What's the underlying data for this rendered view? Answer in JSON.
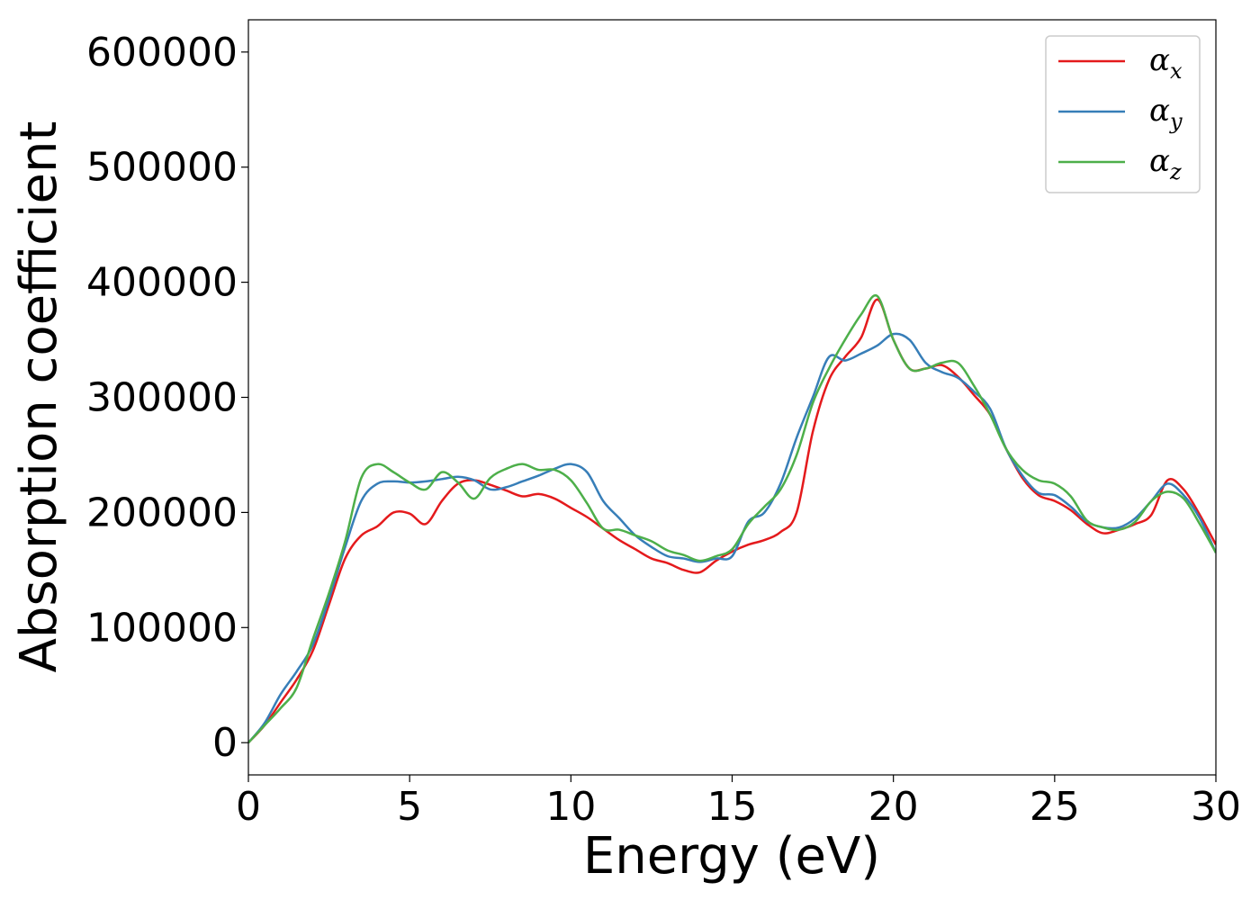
{
  "chart_data": {
    "type": "line",
    "xlabel": "Energy (eV)",
    "ylabel": "Absorption coefficient",
    "xlim": [
      0,
      30
    ],
    "ylim": [
      -28000,
      628000
    ],
    "xticks": [
      0,
      5,
      10,
      15,
      20,
      25,
      30
    ],
    "xtick_labels": [
      "0",
      "5",
      "10",
      "15",
      "20",
      "25",
      "30"
    ],
    "yticks": [
      0,
      100000,
      200000,
      300000,
      400000,
      500000,
      600000
    ],
    "ytick_labels": [
      "0",
      "100000",
      "200000",
      "300000",
      "400000",
      "500000",
      "600000"
    ],
    "grid": false,
    "legend_position": "top-right",
    "series": [
      {
        "name": "α",
        "subscript": "x",
        "color": "#e41a1c",
        "x": [
          0,
          0.5,
          1.0,
          1.5,
          2.0,
          2.5,
          3.0,
          3.5,
          4.0,
          4.5,
          5.0,
          5.5,
          6.0,
          6.5,
          7.0,
          7.5,
          8.0,
          8.5,
          9.0,
          9.5,
          10.0,
          10.5,
          11.0,
          11.5,
          12.0,
          12.5,
          13.0,
          13.5,
          14.0,
          14.5,
          15.0,
          15.5,
          16.0,
          16.5,
          17.0,
          17.5,
          18.0,
          18.5,
          19.0,
          19.5,
          20.0,
          20.5,
          21.0,
          21.5,
          22.0,
          22.5,
          23.0,
          23.5,
          24.0,
          24.5,
          25.0,
          25.5,
          26.0,
          26.5,
          27.0,
          27.5,
          28.0,
          28.5,
          29.0,
          29.5,
          30.0
        ],
        "y": [
          0,
          15000,
          35000,
          55000,
          80000,
          120000,
          160000,
          180000,
          188000,
          200000,
          199000,
          190000,
          210000,
          225000,
          228000,
          224000,
          219000,
          214000,
          216000,
          212000,
          204000,
          196000,
          186000,
          176000,
          168000,
          160000,
          156000,
          150000,
          148000,
          158000,
          166000,
          172000,
          176000,
          183000,
          200000,
          270000,
          315000,
          335000,
          352000,
          385000,
          350000,
          325000,
          325000,
          328000,
          318000,
          302000,
          285000,
          255000,
          230000,
          215000,
          210000,
          202000,
          190000,
          182000,
          185000,
          190000,
          198000,
          228000,
          220000,
          198000,
          172000
        ]
      },
      {
        "name": "α",
        "subscript": "y",
        "color": "#377eb8",
        "x": [
          0,
          0.5,
          1.0,
          1.5,
          2.0,
          2.5,
          3.0,
          3.5,
          4.0,
          4.5,
          5.0,
          5.5,
          6.0,
          6.5,
          7.0,
          7.5,
          8.0,
          8.5,
          9.0,
          9.5,
          10.0,
          10.5,
          11.0,
          11.5,
          12.0,
          12.5,
          13.0,
          13.5,
          14.0,
          14.5,
          15.0,
          15.5,
          16.0,
          16.5,
          17.0,
          17.5,
          18.0,
          18.5,
          19.0,
          19.5,
          20.0,
          20.5,
          21.0,
          21.5,
          22.0,
          22.5,
          23.0,
          23.5,
          24.0,
          24.5,
          25.0,
          25.5,
          26.0,
          26.5,
          27.0,
          27.5,
          28.0,
          28.5,
          29.0,
          29.5,
          30.0
        ],
        "y": [
          0,
          17000,
          42000,
          62000,
          85000,
          125000,
          170000,
          210000,
          225000,
          227000,
          226000,
          227000,
          229000,
          231000,
          228000,
          220000,
          222000,
          227000,
          232000,
          238000,
          242000,
          235000,
          210000,
          195000,
          180000,
          170000,
          162000,
          160000,
          157000,
          160000,
          162000,
          192000,
          200000,
          225000,
          265000,
          300000,
          335000,
          332000,
          338000,
          345000,
          355000,
          350000,
          330000,
          322000,
          317000,
          305000,
          290000,
          255000,
          232000,
          217000,
          215000,
          205000,
          192000,
          187000,
          187000,
          195000,
          210000,
          225000,
          215000,
          195000,
          165000
        ]
      },
      {
        "name": "α",
        "subscript": "z",
        "color": "#4daf4a",
        "x": [
          0,
          0.5,
          1.0,
          1.5,
          2.0,
          2.5,
          3.0,
          3.5,
          4.0,
          4.5,
          5.0,
          5.5,
          6.0,
          6.5,
          7.0,
          7.5,
          8.0,
          8.5,
          9.0,
          9.5,
          10.0,
          10.5,
          11.0,
          11.5,
          12.0,
          12.5,
          13.0,
          13.5,
          14.0,
          14.5,
          15.0,
          15.5,
          16.0,
          16.5,
          17.0,
          17.5,
          18.0,
          18.5,
          19.0,
          19.5,
          20.0,
          20.5,
          21.0,
          21.5,
          22.0,
          22.5,
          23.0,
          23.5,
          24.0,
          24.5,
          25.0,
          25.5,
          26.0,
          26.5,
          27.0,
          27.5,
          28.0,
          28.5,
          29.0,
          29.5,
          30.0
        ],
        "y": [
          0,
          15000,
          30000,
          48000,
          90000,
          130000,
          175000,
          230000,
          242000,
          235000,
          226000,
          220000,
          235000,
          226000,
          212000,
          230000,
          238000,
          242000,
          237000,
          237000,
          228000,
          208000,
          186000,
          185000,
          180000,
          175000,
          167000,
          163000,
          158000,
          162000,
          168000,
          190000,
          205000,
          220000,
          250000,
          295000,
          325000,
          350000,
          372000,
          388000,
          350000,
          325000,
          325000,
          330000,
          330000,
          310000,
          285000,
          255000,
          237000,
          228000,
          225000,
          214000,
          193000,
          187000,
          185000,
          192000,
          210000,
          218000,
          212000,
          190000,
          165000
        ]
      }
    ]
  }
}
